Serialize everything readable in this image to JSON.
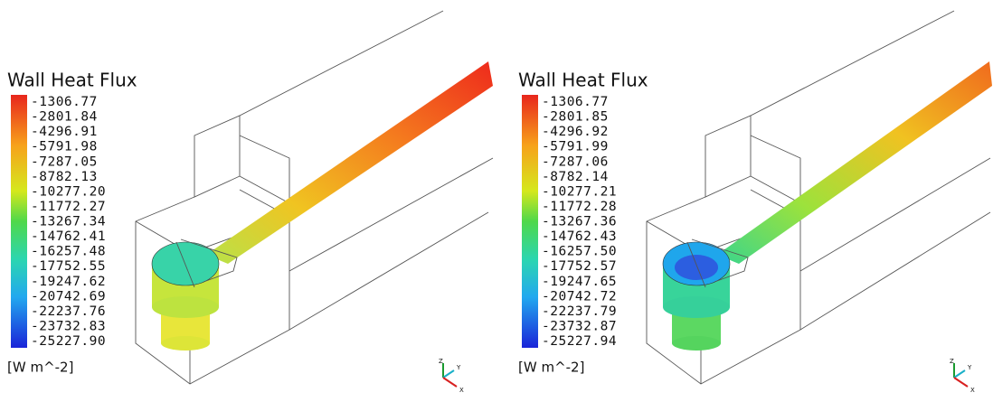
{
  "panels": [
    {
      "title": "Wall Heat Flux",
      "legend": [
        "-1306.77",
        "-2801.84",
        "-4296.91",
        "-5791.98",
        "-7287.05",
        "-8782.13",
        "-10277.20",
        "-11772.27",
        "-13267.34",
        "-14762.41",
        "-16257.48",
        "-17752.55",
        "-19247.62",
        "-20742.69",
        "-22237.76",
        "-23732.83",
        "-25227.90"
      ],
      "unit": "[W m^-2]",
      "axes": [
        "Z",
        "Y",
        "X"
      ]
    },
    {
      "title": "Wall Heat Flux",
      "legend": [
        "-1306.77",
        "-2801.85",
        "-4296.92",
        "-5791.99",
        "-7287.06",
        "-8782.14",
        "-10277.21",
        "-11772.28",
        "-13267.36",
        "-14762.43",
        "-16257.50",
        "-17752.57",
        "-19247.65",
        "-20742.72",
        "-22237.79",
        "-23732.87",
        "-25227.94"
      ],
      "unit": "[W m^-2]",
      "axes": [
        "Z",
        "Y",
        "X"
      ]
    }
  ]
}
